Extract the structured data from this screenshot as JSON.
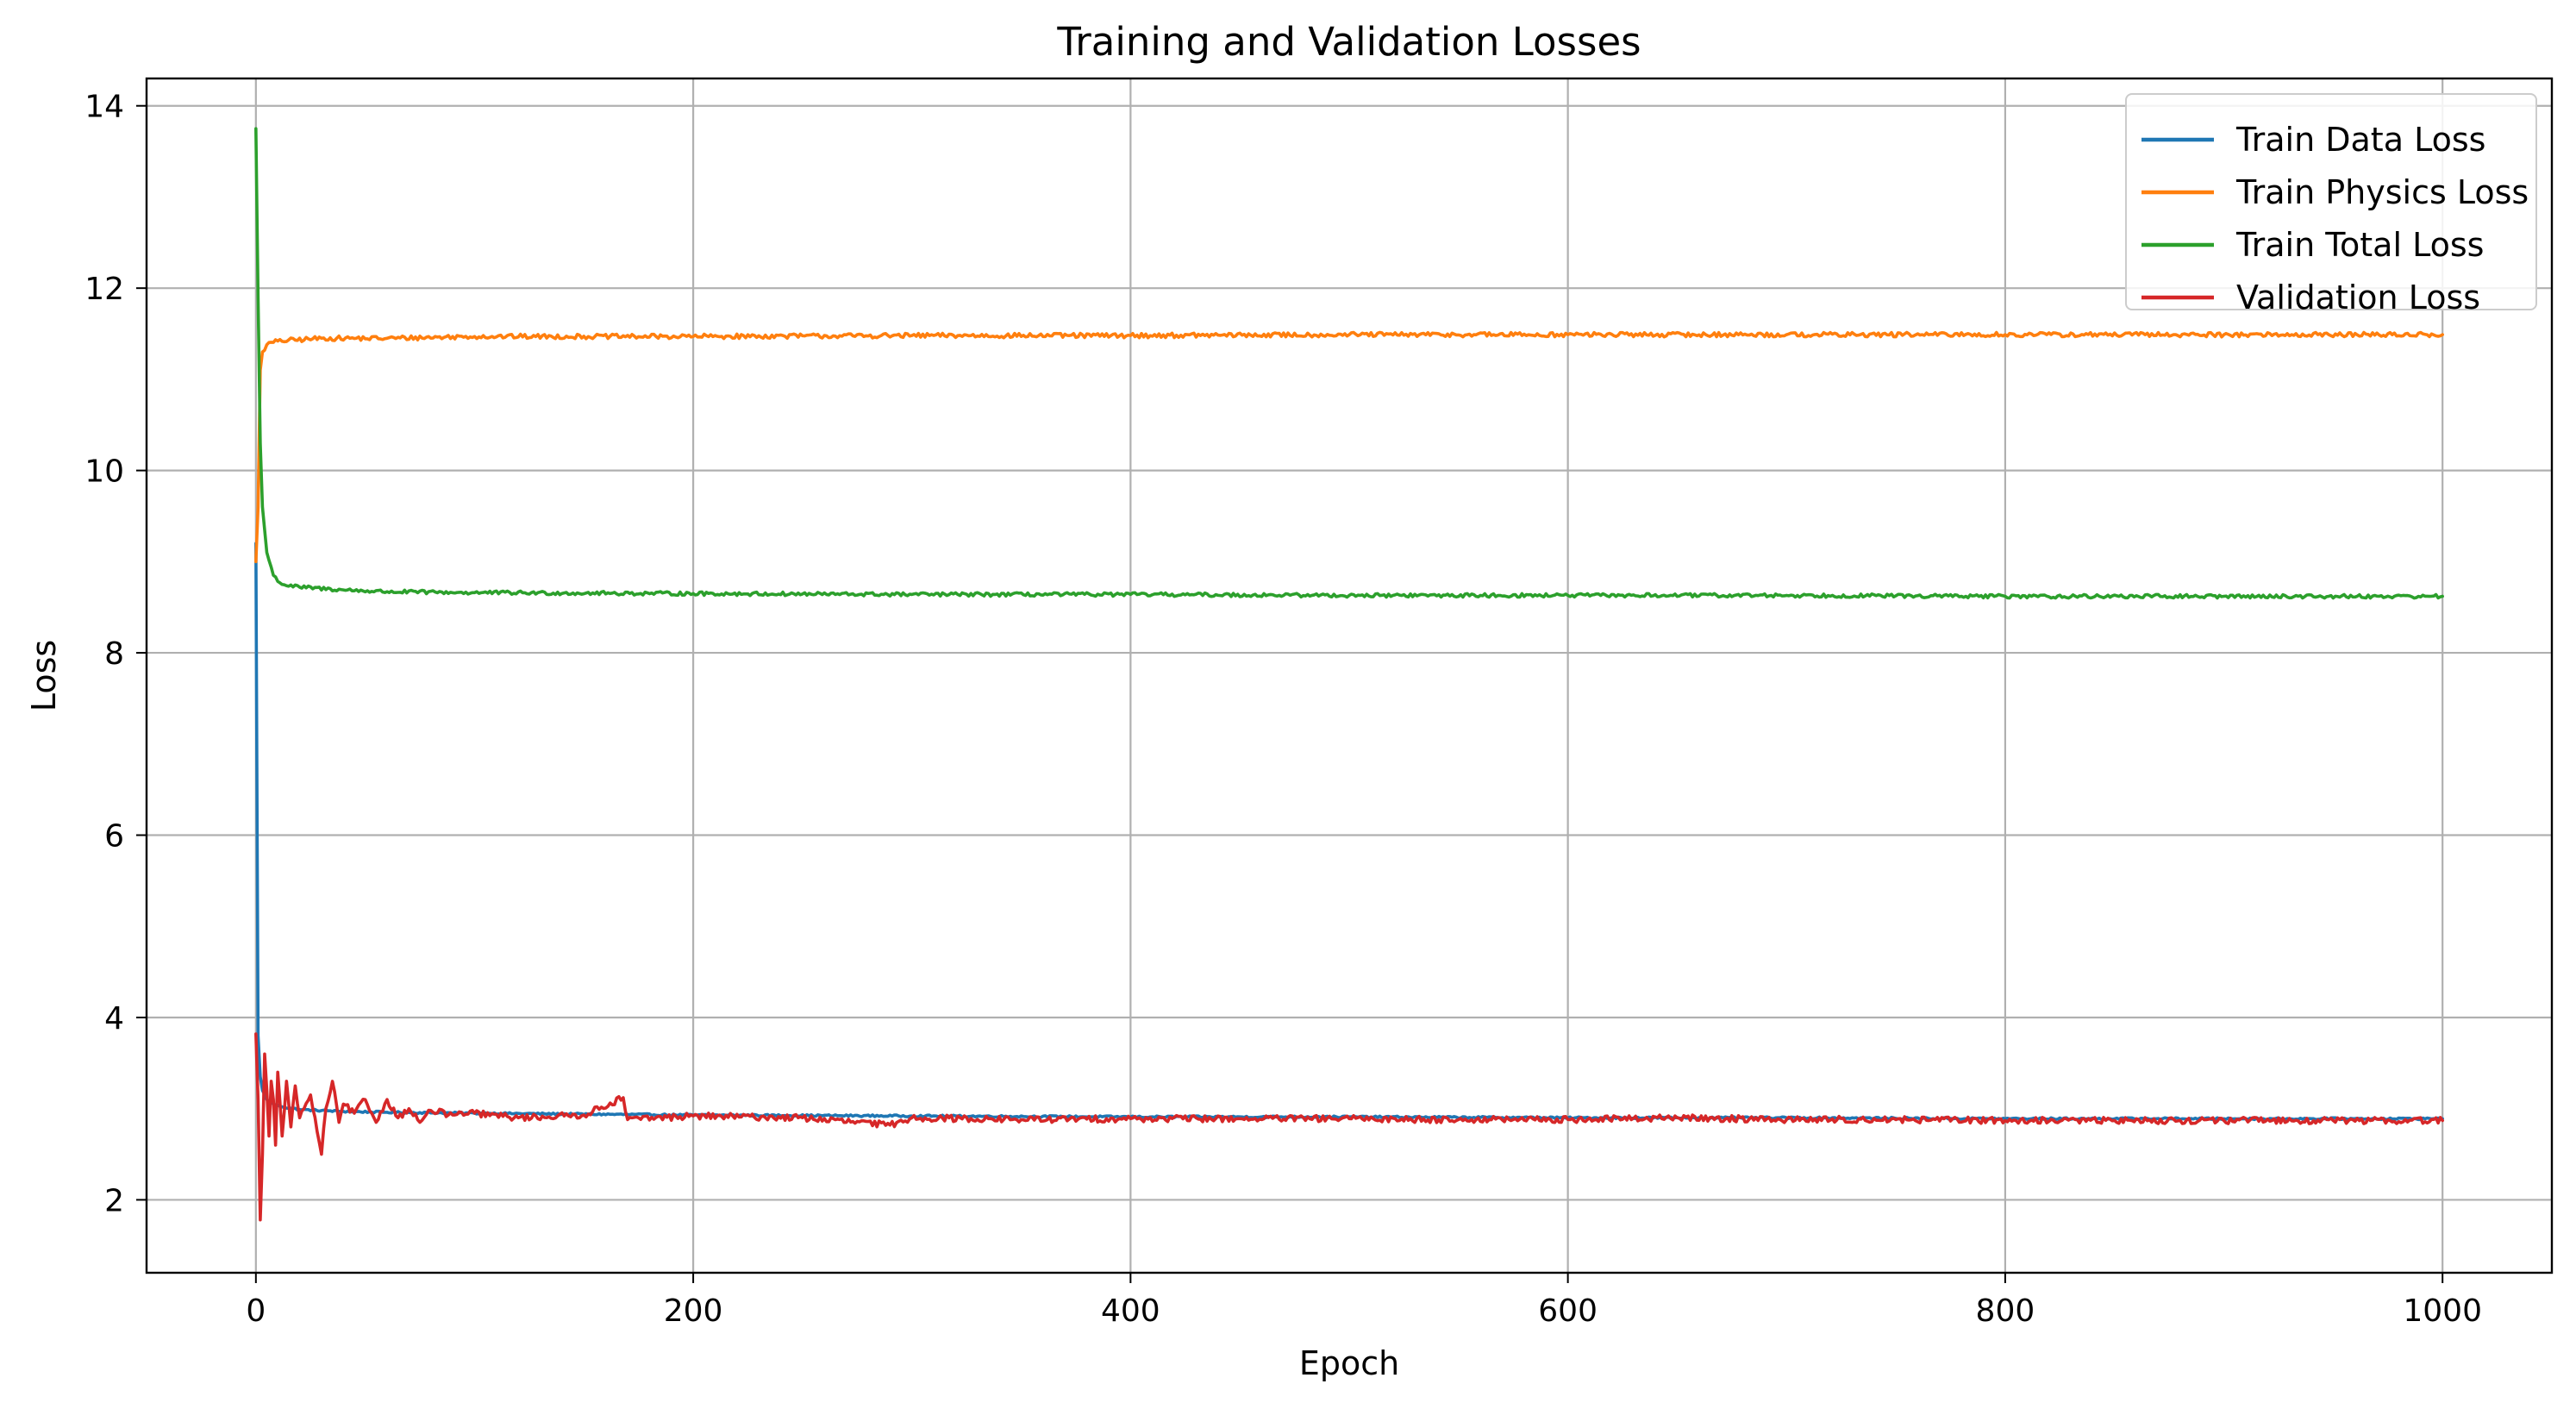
{
  "chart_data": {
    "type": "line",
    "title": "Training and Validation Losses",
    "xlabel": "Epoch",
    "ylabel": "Loss",
    "xlim": [
      -50,
      1050
    ],
    "ylim": [
      1.2,
      14.3
    ],
    "xticks": [
      0,
      200,
      400,
      600,
      800,
      1000
    ],
    "yticks": [
      2,
      4,
      6,
      8,
      10,
      12,
      14
    ],
    "grid": true,
    "legend_position": "top-right",
    "series": [
      {
        "name": "Train Data Loss",
        "color": "#1f77b4",
        "points": [
          [
            0,
            9.2
          ],
          [
            1,
            3.8
          ],
          [
            2,
            3.35
          ],
          [
            3,
            3.2
          ],
          [
            5,
            3.1
          ],
          [
            8,
            3.05
          ],
          [
            12,
            3.02
          ],
          [
            20,
            2.99
          ],
          [
            40,
            2.97
          ],
          [
            60,
            2.96
          ],
          [
            100,
            2.95
          ],
          [
            200,
            2.93
          ],
          [
            300,
            2.92
          ],
          [
            400,
            2.91
          ],
          [
            500,
            2.91
          ],
          [
            600,
            2.9
          ],
          [
            700,
            2.9
          ],
          [
            800,
            2.89
          ],
          [
            900,
            2.89
          ],
          [
            1000,
            2.89
          ]
        ],
        "noise": 0.01
      },
      {
        "name": "Train Physics Loss",
        "color": "#ff7f0e",
        "points": [
          [
            0,
            9.0
          ],
          [
            1,
            9.6
          ],
          [
            2,
            11.1
          ],
          [
            3,
            11.3
          ],
          [
            5,
            11.38
          ],
          [
            10,
            11.42
          ],
          [
            30,
            11.45
          ],
          [
            60,
            11.45
          ],
          [
            100,
            11.47
          ],
          [
            200,
            11.47
          ],
          [
            300,
            11.48
          ],
          [
            400,
            11.48
          ],
          [
            500,
            11.49
          ],
          [
            600,
            11.49
          ],
          [
            700,
            11.49
          ],
          [
            800,
            11.49
          ],
          [
            900,
            11.49
          ],
          [
            1000,
            11.49
          ]
        ],
        "noise": 0.025
      },
      {
        "name": "Train Total Loss",
        "color": "#2ca02c",
        "points": [
          [
            0,
            13.75
          ],
          [
            1,
            11.9
          ],
          [
            2,
            10.3
          ],
          [
            3,
            9.6
          ],
          [
            5,
            9.1
          ],
          [
            8,
            8.85
          ],
          [
            12,
            8.75
          ],
          [
            20,
            8.72
          ],
          [
            40,
            8.69
          ],
          [
            60,
            8.67
          ],
          [
            100,
            8.66
          ],
          [
            200,
            8.65
          ],
          [
            300,
            8.64
          ],
          [
            400,
            8.64
          ],
          [
            500,
            8.63
          ],
          [
            600,
            8.63
          ],
          [
            700,
            8.63
          ],
          [
            800,
            8.62
          ],
          [
            900,
            8.62
          ],
          [
            1000,
            8.62
          ]
        ],
        "noise": 0.02
      },
      {
        "name": "Validation Loss",
        "color": "#d62728",
        "points": [
          [
            0,
            3.82
          ],
          [
            1,
            3.1
          ],
          [
            2,
            1.78
          ],
          [
            3,
            2.5
          ],
          [
            4,
            3.6
          ],
          [
            5,
            3.2
          ],
          [
            6,
            2.7
          ],
          [
            7,
            3.3
          ],
          [
            8,
            3.1
          ],
          [
            9,
            2.6
          ],
          [
            10,
            3.4
          ],
          [
            12,
            2.7
          ],
          [
            14,
            3.3
          ],
          [
            16,
            2.8
          ],
          [
            18,
            3.25
          ],
          [
            20,
            2.9
          ],
          [
            22,
            3.0
          ],
          [
            25,
            3.15
          ],
          [
            28,
            2.75
          ],
          [
            30,
            2.5
          ],
          [
            32,
            3.0
          ],
          [
            35,
            3.3
          ],
          [
            38,
            2.85
          ],
          [
            40,
            3.05
          ],
          [
            45,
            2.95
          ],
          [
            50,
            3.1
          ],
          [
            55,
            2.85
          ],
          [
            60,
            3.1
          ],
          [
            65,
            2.9
          ],
          [
            70,
            3.0
          ],
          [
            75,
            2.85
          ],
          [
            80,
            2.98
          ],
          [
            90,
            2.93
          ],
          [
            100,
            2.95
          ],
          [
            120,
            2.9
          ],
          [
            150,
            2.93
          ],
          [
            168,
            3.12
          ],
          [
            170,
            2.88
          ],
          [
            200,
            2.92
          ],
          [
            250,
            2.9
          ],
          [
            290,
            2.82
          ],
          [
            300,
            2.9
          ],
          [
            350,
            2.88
          ],
          [
            400,
            2.89
          ],
          [
            450,
            2.89
          ],
          [
            500,
            2.89
          ],
          [
            550,
            2.88
          ],
          [
            600,
            2.88
          ],
          [
            650,
            2.9
          ],
          [
            700,
            2.88
          ],
          [
            750,
            2.88
          ],
          [
            800,
            2.87
          ],
          [
            850,
            2.87
          ],
          [
            900,
            2.87
          ],
          [
            950,
            2.87
          ],
          [
            1000,
            2.87
          ]
        ],
        "noise": 0.035
      }
    ]
  }
}
